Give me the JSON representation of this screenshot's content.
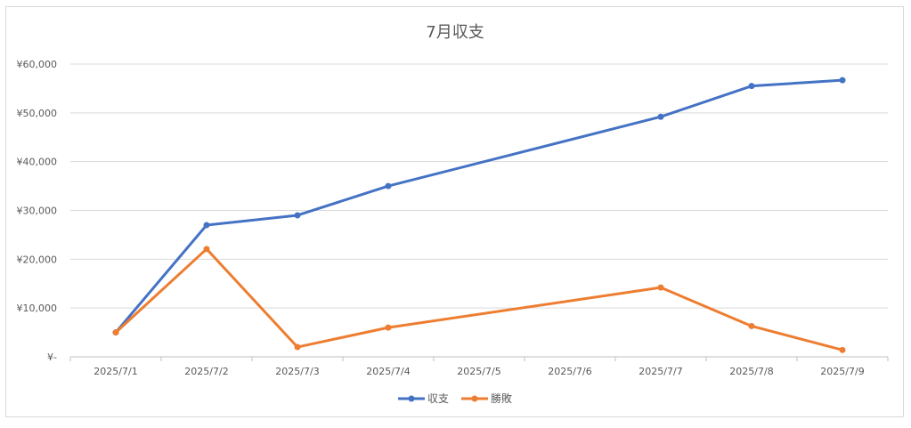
{
  "chart_data": {
    "type": "line",
    "title": "7月収支",
    "xlabel": "",
    "ylabel": "",
    "categories": [
      "2025/7/1",
      "2025/7/2",
      "2025/7/3",
      "2025/7/4",
      "2025/7/5",
      "2025/7/6",
      "2025/7/7",
      "2025/7/8",
      "2025/7/9"
    ],
    "y_tick_labels": [
      "¥-",
      "¥10,000",
      "¥20,000",
      "¥30,000",
      "¥40,000",
      "¥50,000",
      "¥60,000"
    ],
    "ylim": [
      0,
      60000
    ],
    "grid": true,
    "legend_position": "bottom",
    "series": [
      {
        "name": "収支",
        "color": "#4472c4",
        "points": [
          {
            "x": "2025/7/1",
            "y": 5000
          },
          {
            "x": "2025/7/2",
            "y": 27000
          },
          {
            "x": "2025/7/3",
            "y": 29000
          },
          {
            "x": "2025/7/4",
            "y": 35000
          },
          {
            "x": "2025/7/7",
            "y": 49200
          },
          {
            "x": "2025/7/8",
            "y": 55500
          },
          {
            "x": "2025/7/9",
            "y": 56700
          }
        ]
      },
      {
        "name": "勝敗",
        "color": "#ed7d31",
        "points": [
          {
            "x": "2025/7/1",
            "y": 5000
          },
          {
            "x": "2025/7/2",
            "y": 22100
          },
          {
            "x": "2025/7/3",
            "y": 2000
          },
          {
            "x": "2025/7/4",
            "y": 6000
          },
          {
            "x": "2025/7/7",
            "y": 14200
          },
          {
            "x": "2025/7/8",
            "y": 6300
          },
          {
            "x": "2025/7/9",
            "y": 1400
          }
        ]
      }
    ]
  }
}
